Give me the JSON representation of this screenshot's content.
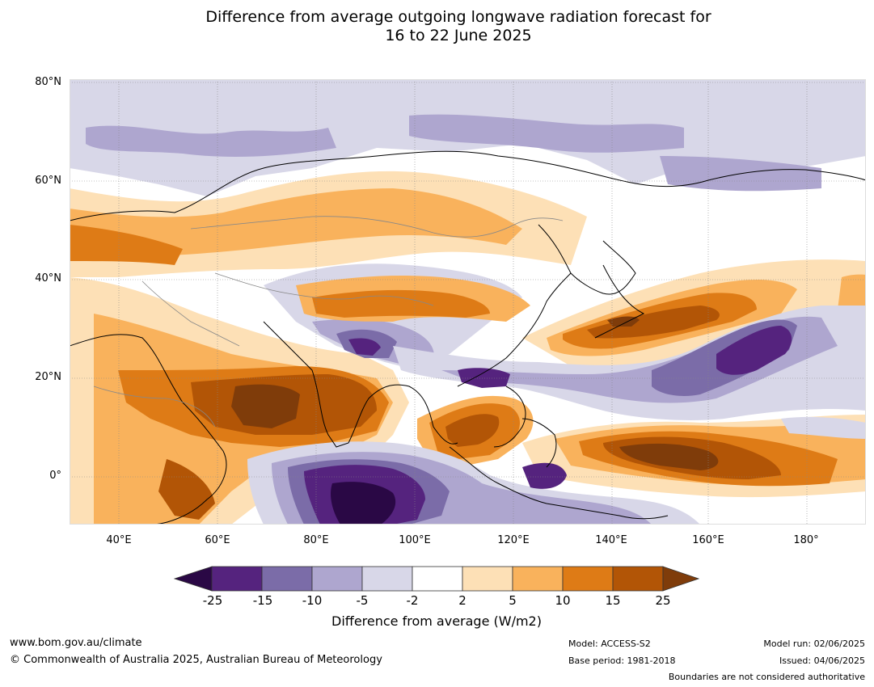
{
  "title": {
    "line1": "Difference from average outgoing longwave radiation forecast for",
    "line2": "16 to 22 June 2025"
  },
  "map": {
    "lat_labels": [
      "80°N",
      "60°N",
      "40°N",
      "20°N",
      "0°"
    ],
    "lon_labels": [
      "40°E",
      "60°E",
      "80°E",
      "100°E",
      "120°E",
      "140°E",
      "160°E",
      "180°"
    ]
  },
  "legend": {
    "title": "Difference from average (W/m2)",
    "ticks": [
      "-25",
      "-15",
      "-10",
      "-5",
      "-2",
      "2",
      "5",
      "10",
      "15",
      "25"
    ],
    "colors": {
      "below_min": "#2a0845",
      "bins": [
        "#55237e",
        "#7b6ca8",
        "#aea6cf",
        "#d8d7e8",
        "#ffffff",
        "#fde0b6",
        "#f9b25c",
        "#de7b16",
        "#b25506"
      ],
      "above_max": "#7f3c0a"
    }
  },
  "footer": {
    "url": "www.bom.gov.au/climate",
    "copyright": "© Commonwealth of Australia 2025, Australian Bureau of Meteorology",
    "model": "Model: ACCESS-S2",
    "base_period": "Base period: 1981-2018",
    "model_run": "Model run: 02/06/2025",
    "issued": "Issued: 04/06/2025",
    "disclaimer": "Boundaries are not considered authoritative"
  }
}
